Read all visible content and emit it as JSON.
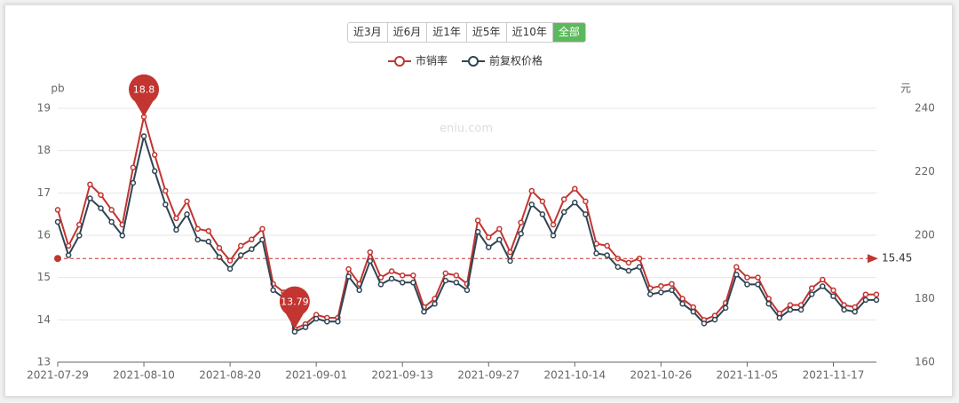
{
  "range_buttons": [
    "近3月",
    "近6月",
    "近1年",
    "近5年",
    "近10年",
    "全部"
  ],
  "active_button": 5,
  "chart_data": {
    "type": "line",
    "watermark": "eniu.com",
    "y_label": "pb",
    "y2_label": "元",
    "categories": [
      "2021-07-29",
      null,
      null,
      null,
      null,
      null,
      null,
      null,
      "2021-08-10",
      null,
      null,
      null,
      null,
      null,
      null,
      null,
      "2021-08-20",
      null,
      null,
      null,
      null,
      null,
      null,
      null,
      "2021-09-01",
      null,
      null,
      null,
      null,
      null,
      null,
      null,
      "2021-09-13",
      null,
      null,
      null,
      null,
      null,
      null,
      null,
      "2021-09-27",
      null,
      null,
      null,
      null,
      null,
      null,
      null,
      "2021-10-14",
      null,
      null,
      null,
      null,
      null,
      null,
      null,
      "2021-10-26",
      null,
      null,
      null,
      null,
      null,
      null,
      null,
      "2021-11-05",
      null,
      null,
      null,
      null,
      null,
      null,
      null,
      "2021-11-17",
      null,
      null,
      null,
      null
    ],
    "series": [
      {
        "name": "市销率",
        "color": "#c23531",
        "axis": "y",
        "values": [
          16.6,
          15.75,
          16.25,
          17.2,
          16.95,
          16.6,
          16.25,
          17.6,
          18.8,
          17.9,
          17.05,
          16.4,
          16.8,
          16.15,
          16.1,
          15.7,
          15.4,
          15.75,
          15.9,
          16.15,
          14.85,
          14.65,
          13.79,
          13.9,
          14.12,
          14.05,
          14.05,
          15.2,
          14.85,
          15.6,
          15.0,
          15.15,
          15.05,
          15.05,
          14.3,
          14.5,
          15.1,
          15.05,
          14.85,
          16.35,
          15.95,
          16.15,
          15.6,
          16.3,
          17.05,
          16.8,
          16.25,
          16.85,
          17.1,
          16.8,
          15.8,
          15.75,
          15.45,
          15.35,
          15.45,
          14.75,
          14.8,
          14.85,
          14.5,
          14.3,
          14.0,
          14.1,
          14.4,
          15.25,
          15.0,
          15.0,
          14.5,
          14.15,
          14.35,
          14.35,
          14.75,
          14.95,
          14.7,
          14.35,
          14.3,
          14.6,
          14.6
        ],
        "max_index": 8,
        "min_index": 22,
        "average": 15.45
      },
      {
        "name": "前复权价格",
        "color": "#2f4554",
        "axis": "y2",
        "values": [
          204.2,
          193.7,
          199.9,
          211.6,
          208.5,
          204.2,
          199.9,
          216.5,
          231.2,
          220.2,
          209.7,
          201.7,
          206.6,
          198.6,
          198.0,
          193.1,
          189.4,
          193.7,
          195.6,
          198.6,
          182.7,
          180.2,
          169.6,
          171.0,
          173.7,
          172.8,
          172.8,
          187.0,
          182.7,
          191.9,
          184.5,
          186.3,
          185.1,
          185.1,
          175.9,
          178.4,
          185.7,
          185.1,
          182.7,
          201.1,
          196.2,
          198.6,
          191.9,
          200.5,
          209.7,
          206.6,
          199.9,
          207.3,
          210.3,
          206.6,
          194.3,
          193.7,
          190.0,
          188.8,
          190.0,
          181.4,
          182.0,
          182.7,
          178.4,
          175.9,
          172.2,
          173.4,
          177.1,
          187.6,
          184.5,
          184.5,
          178.4,
          174.0,
          176.5,
          176.5,
          181.4,
          183.9,
          180.8,
          176.5,
          175.9,
          179.6,
          179.6
        ]
      }
    ],
    "ylim": [
      13,
      19
    ],
    "yticks": [
      13,
      14,
      15,
      16,
      17,
      18,
      19
    ],
    "y2lim": [
      160,
      240
    ],
    "y2ticks": [
      160,
      180,
      200,
      220,
      240
    ],
    "grid": true
  }
}
